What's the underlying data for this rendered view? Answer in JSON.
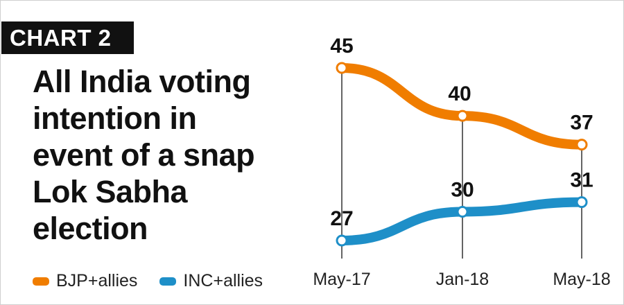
{
  "header": {
    "tag": "CHART 2",
    "title_lines": [
      "All India voting",
      "intention in",
      "event of a snap",
      "Lok Sabha",
      "election"
    ]
  },
  "chart_data": {
    "type": "line",
    "categories": [
      "May-17",
      "Jan-18",
      "May-18"
    ],
    "series": [
      {
        "name": "BJP+allies",
        "values": [
          45,
          40,
          37
        ],
        "color": "#F07D00"
      },
      {
        "name": "INC+allies",
        "values": [
          27,
          30,
          31
        ],
        "color": "#1E8FC8"
      }
    ],
    "ylim": [
      25,
      47
    ],
    "grid": false,
    "legend": "bottom-left"
  }
}
